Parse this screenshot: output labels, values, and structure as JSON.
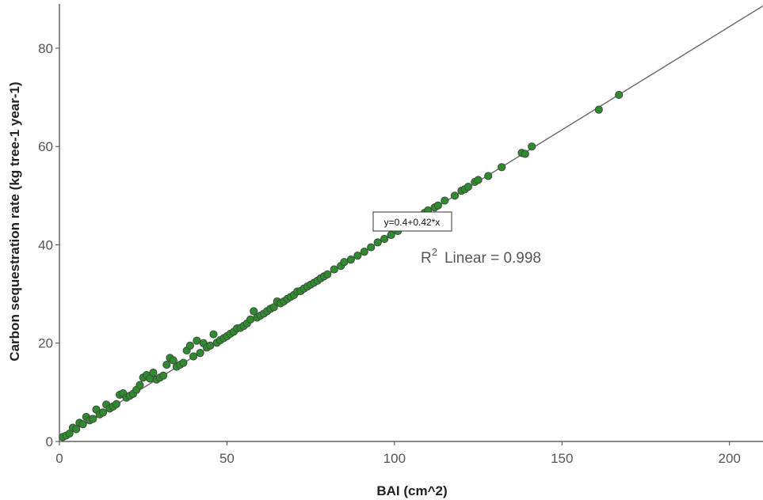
{
  "chart_data": {
    "type": "scatter",
    "title": "",
    "xlabel": "BAI (cm^2)",
    "ylabel": "Carbon sequestration rate (kg tree-1 year-1)",
    "xlim": [
      0,
      210
    ],
    "ylim": [
      0,
      89
    ],
    "x_ticks": [
      0,
      50,
      100,
      150,
      200
    ],
    "y_ticks": [
      0,
      20,
      40,
      60,
      80
    ],
    "x_tick_labels": [
      "0",
      "50",
      "100",
      "150",
      "200"
    ],
    "y_tick_labels": [
      "0",
      "20",
      "40",
      "60",
      "80"
    ],
    "grid": false,
    "marker_color": "#2e8b2e",
    "marker_edge_color": "#3f4a3f",
    "line_color": "#666666",
    "fit": {
      "intercept": 0.4,
      "slope": 0.42,
      "equation_label": "y=0.4+0.42*x",
      "r2_prefix": "R",
      "r2_sup": "2",
      "r2_label": "Linear = 0.998",
      "r2": 0.998
    },
    "points": [
      {
        "x": 1,
        "y": 0.9
      },
      {
        "x": 2,
        "y": 1.2
      },
      {
        "x": 3,
        "y": 1.6
      },
      {
        "x": 4,
        "y": 2.8
      },
      {
        "x": 5,
        "y": 2.5
      },
      {
        "x": 6,
        "y": 3.8
      },
      {
        "x": 7,
        "y": 3.5
      },
      {
        "x": 8,
        "y": 5.0
      },
      {
        "x": 9,
        "y": 4.3
      },
      {
        "x": 10,
        "y": 4.6
      },
      {
        "x": 11,
        "y": 6.5
      },
      {
        "x": 12,
        "y": 5.5
      },
      {
        "x": 13,
        "y": 5.9
      },
      {
        "x": 14,
        "y": 7.5
      },
      {
        "x": 15,
        "y": 6.7
      },
      {
        "x": 16,
        "y": 7.1
      },
      {
        "x": 17,
        "y": 7.6
      },
      {
        "x": 18,
        "y": 9.5
      },
      {
        "x": 19,
        "y": 9.8
      },
      {
        "x": 20,
        "y": 8.9
      },
      {
        "x": 21,
        "y": 9.3
      },
      {
        "x": 22,
        "y": 9.7
      },
      {
        "x": 23,
        "y": 10.5
      },
      {
        "x": 24,
        "y": 11.5
      },
      {
        "x": 25,
        "y": 13.0
      },
      {
        "x": 26,
        "y": 13.5
      },
      {
        "x": 27,
        "y": 12.8
      },
      {
        "x": 28,
        "y": 14.0
      },
      {
        "x": 29,
        "y": 12.6
      },
      {
        "x": 30,
        "y": 13.0
      },
      {
        "x": 31,
        "y": 13.4
      },
      {
        "x": 32,
        "y": 15.6
      },
      {
        "x": 33,
        "y": 17.0
      },
      {
        "x": 34,
        "y": 16.5
      },
      {
        "x": 35,
        "y": 15.2
      },
      {
        "x": 36,
        "y": 15.6
      },
      {
        "x": 37,
        "y": 16.0
      },
      {
        "x": 38,
        "y": 18.5
      },
      {
        "x": 39,
        "y": 19.5
      },
      {
        "x": 40,
        "y": 17.3
      },
      {
        "x": 41,
        "y": 20.5
      },
      {
        "x": 42,
        "y": 18.0
      },
      {
        "x": 43,
        "y": 20.0
      },
      {
        "x": 44,
        "y": 19.1
      },
      {
        "x": 45,
        "y": 19.5
      },
      {
        "x": 46,
        "y": 21.8
      },
      {
        "x": 47,
        "y": 20.1
      },
      {
        "x": 48,
        "y": 20.6
      },
      {
        "x": 49,
        "y": 21.0
      },
      {
        "x": 50,
        "y": 21.4
      },
      {
        "x": 51,
        "y": 21.9
      },
      {
        "x": 52,
        "y": 22.3
      },
      {
        "x": 53,
        "y": 23.0
      },
      {
        "x": 54,
        "y": 23.1
      },
      {
        "x": 55,
        "y": 23.5
      },
      {
        "x": 56,
        "y": 24.0
      },
      {
        "x": 57,
        "y": 24.8
      },
      {
        "x": 58,
        "y": 26.5
      },
      {
        "x": 59,
        "y": 25.2
      },
      {
        "x": 60,
        "y": 25.6
      },
      {
        "x": 61,
        "y": 26.0
      },
      {
        "x": 62,
        "y": 26.5
      },
      {
        "x": 63,
        "y": 27.0
      },
      {
        "x": 64,
        "y": 27.3
      },
      {
        "x": 65,
        "y": 28.5
      },
      {
        "x": 66,
        "y": 28.1
      },
      {
        "x": 67,
        "y": 28.5
      },
      {
        "x": 68,
        "y": 29.0
      },
      {
        "x": 69,
        "y": 29.4
      },
      {
        "x": 70,
        "y": 29.8
      },
      {
        "x": 71,
        "y": 30.5
      },
      {
        "x": 72,
        "y": 30.6
      },
      {
        "x": 73,
        "y": 31.1
      },
      {
        "x": 74,
        "y": 31.5
      },
      {
        "x": 75,
        "y": 31.9
      },
      {
        "x": 76,
        "y": 32.3
      },
      {
        "x": 77,
        "y": 32.7
      },
      {
        "x": 78,
        "y": 33.2
      },
      {
        "x": 79,
        "y": 33.6
      },
      {
        "x": 80,
        "y": 34.0
      },
      {
        "x": 82,
        "y": 35.0
      },
      {
        "x": 84,
        "y": 35.7
      },
      {
        "x": 85,
        "y": 36.5
      },
      {
        "x": 87,
        "y": 37.0
      },
      {
        "x": 89,
        "y": 37.8
      },
      {
        "x": 91,
        "y": 38.6
      },
      {
        "x": 93,
        "y": 39.5
      },
      {
        "x": 95,
        "y": 40.5
      },
      {
        "x": 97,
        "y": 41.2
      },
      {
        "x": 99,
        "y": 42.0
      },
      {
        "x": 101,
        "y": 42.8
      },
      {
        "x": 103,
        "y": 43.6
      },
      {
        "x": 105,
        "y": 44.5
      },
      {
        "x": 107,
        "y": 45.3
      },
      {
        "x": 109,
        "y": 46.5
      },
      {
        "x": 110,
        "y": 47.0
      },
      {
        "x": 112,
        "y": 47.6
      },
      {
        "x": 113,
        "y": 48.0
      },
      {
        "x": 115,
        "y": 49.0
      },
      {
        "x": 118,
        "y": 50.0
      },
      {
        "x": 120,
        "y": 51.0
      },
      {
        "x": 121,
        "y": 51.3
      },
      {
        "x": 122,
        "y": 51.8
      },
      {
        "x": 124,
        "y": 52.8
      },
      {
        "x": 125,
        "y": 53.2
      },
      {
        "x": 128,
        "y": 54.0
      },
      {
        "x": 132,
        "y": 55.8
      },
      {
        "x": 138,
        "y": 58.7
      },
      {
        "x": 139,
        "y": 58.5
      },
      {
        "x": 141,
        "y": 60.0
      },
      {
        "x": 161,
        "y": 67.5
      },
      {
        "x": 167,
        "y": 70.5
      }
    ]
  }
}
